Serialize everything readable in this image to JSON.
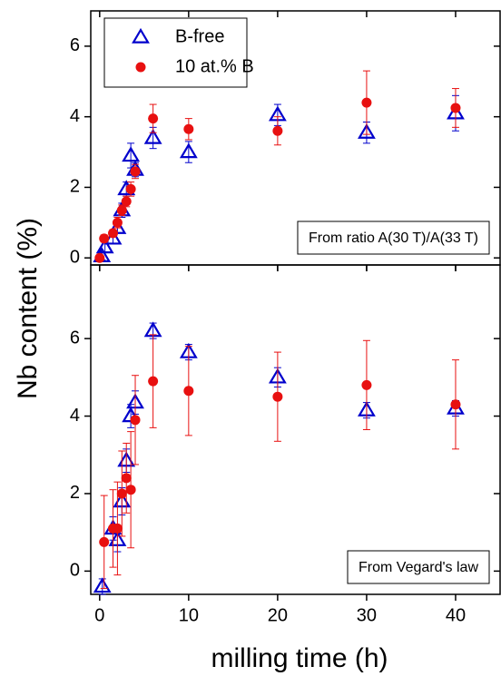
{
  "chart_data": [
    {
      "type": "scatter",
      "ylabel": "Nb content (%)",
      "annotation": "From ratio A(30 T)/A(33 T)",
      "xlim": [
        -1,
        45
      ],
      "xticks": [
        0,
        10,
        20,
        30,
        40
      ],
      "xticklabels": false,
      "ylim": [
        -0.2,
        7
      ],
      "yticks": [
        0,
        2,
        4,
        6
      ],
      "legend": "upper left",
      "series": [
        {
          "name": "B-free",
          "color": "#0000cc",
          "marker": "triangle",
          "x": [
            0.25,
            0.6,
            1.5,
            2,
            2.5,
            3,
            3.5,
            4,
            6,
            10,
            20,
            30,
            40
          ],
          "values": [
            0.05,
            0.3,
            0.55,
            0.85,
            1.35,
            1.95,
            2.9,
            2.5,
            3.4,
            3.0,
            4.05,
            3.55,
            4.1
          ],
          "errors": [
            0.1,
            0.15,
            0.15,
            0.15,
            0.2,
            0.2,
            0.35,
            0.2,
            0.3,
            0.3,
            0.3,
            0.3,
            0.5
          ]
        },
        {
          "name": "10 at.% B",
          "color": "#e81010",
          "marker": "circle",
          "x": [
            0,
            0.5,
            1.5,
            2,
            2.5,
            3,
            3.5,
            4,
            6,
            10,
            20,
            30,
            40
          ],
          "values": [
            0,
            0.55,
            0.7,
            1.0,
            1.35,
            1.6,
            1.95,
            2.45,
            3.95,
            3.65,
            3.6,
            4.4,
            4.25
          ],
          "errors": [
            0.05,
            0.1,
            0.1,
            0.15,
            0.15,
            0.15,
            0.2,
            0.2,
            0.4,
            0.3,
            0.4,
            0.9,
            0.55
          ]
        }
      ]
    },
    {
      "type": "scatter",
      "xlabel": "milling time (h)",
      "annotation": "From Vegard's law",
      "xlim": [
        -1,
        45
      ],
      "xticks": [
        0,
        10,
        20,
        30,
        40
      ],
      "xticklabels": true,
      "ylim": [
        -0.6,
        7.9
      ],
      "yticks": [
        0,
        2,
        4,
        6
      ],
      "series": [
        {
          "color": "#0000cc",
          "marker": "triangle",
          "x": [
            0.3,
            1.5,
            2,
            2.5,
            3,
            3.5,
            4,
            6,
            10,
            20,
            30,
            40
          ],
          "values": [
            -0.4,
            1.1,
            0.8,
            1.8,
            2.85,
            4.0,
            4.35,
            6.2,
            5.65,
            5.0,
            4.15,
            4.2
          ],
          "errors": [
            0.2,
            0.3,
            0.3,
            0.35,
            0.3,
            0.3,
            0.3,
            0.2,
            0.2,
            0.25,
            0.2,
            0.2
          ]
        },
        {
          "color": "#e81010",
          "marker": "circle",
          "x": [
            0.5,
            1.5,
            2,
            2.5,
            3,
            3.5,
            4,
            6,
            10,
            20,
            30,
            40
          ],
          "values": [
            0.75,
            1.1,
            1.1,
            2.0,
            2.4,
            2.1,
            3.9,
            4.9,
            4.65,
            4.5,
            4.8,
            4.3
          ],
          "errors": [
            1.2,
            1.0,
            1.2,
            1.1,
            0.9,
            1.5,
            1.15,
            1.2,
            1.15,
            1.15,
            1.15,
            1.15
          ]
        }
      ]
    }
  ]
}
